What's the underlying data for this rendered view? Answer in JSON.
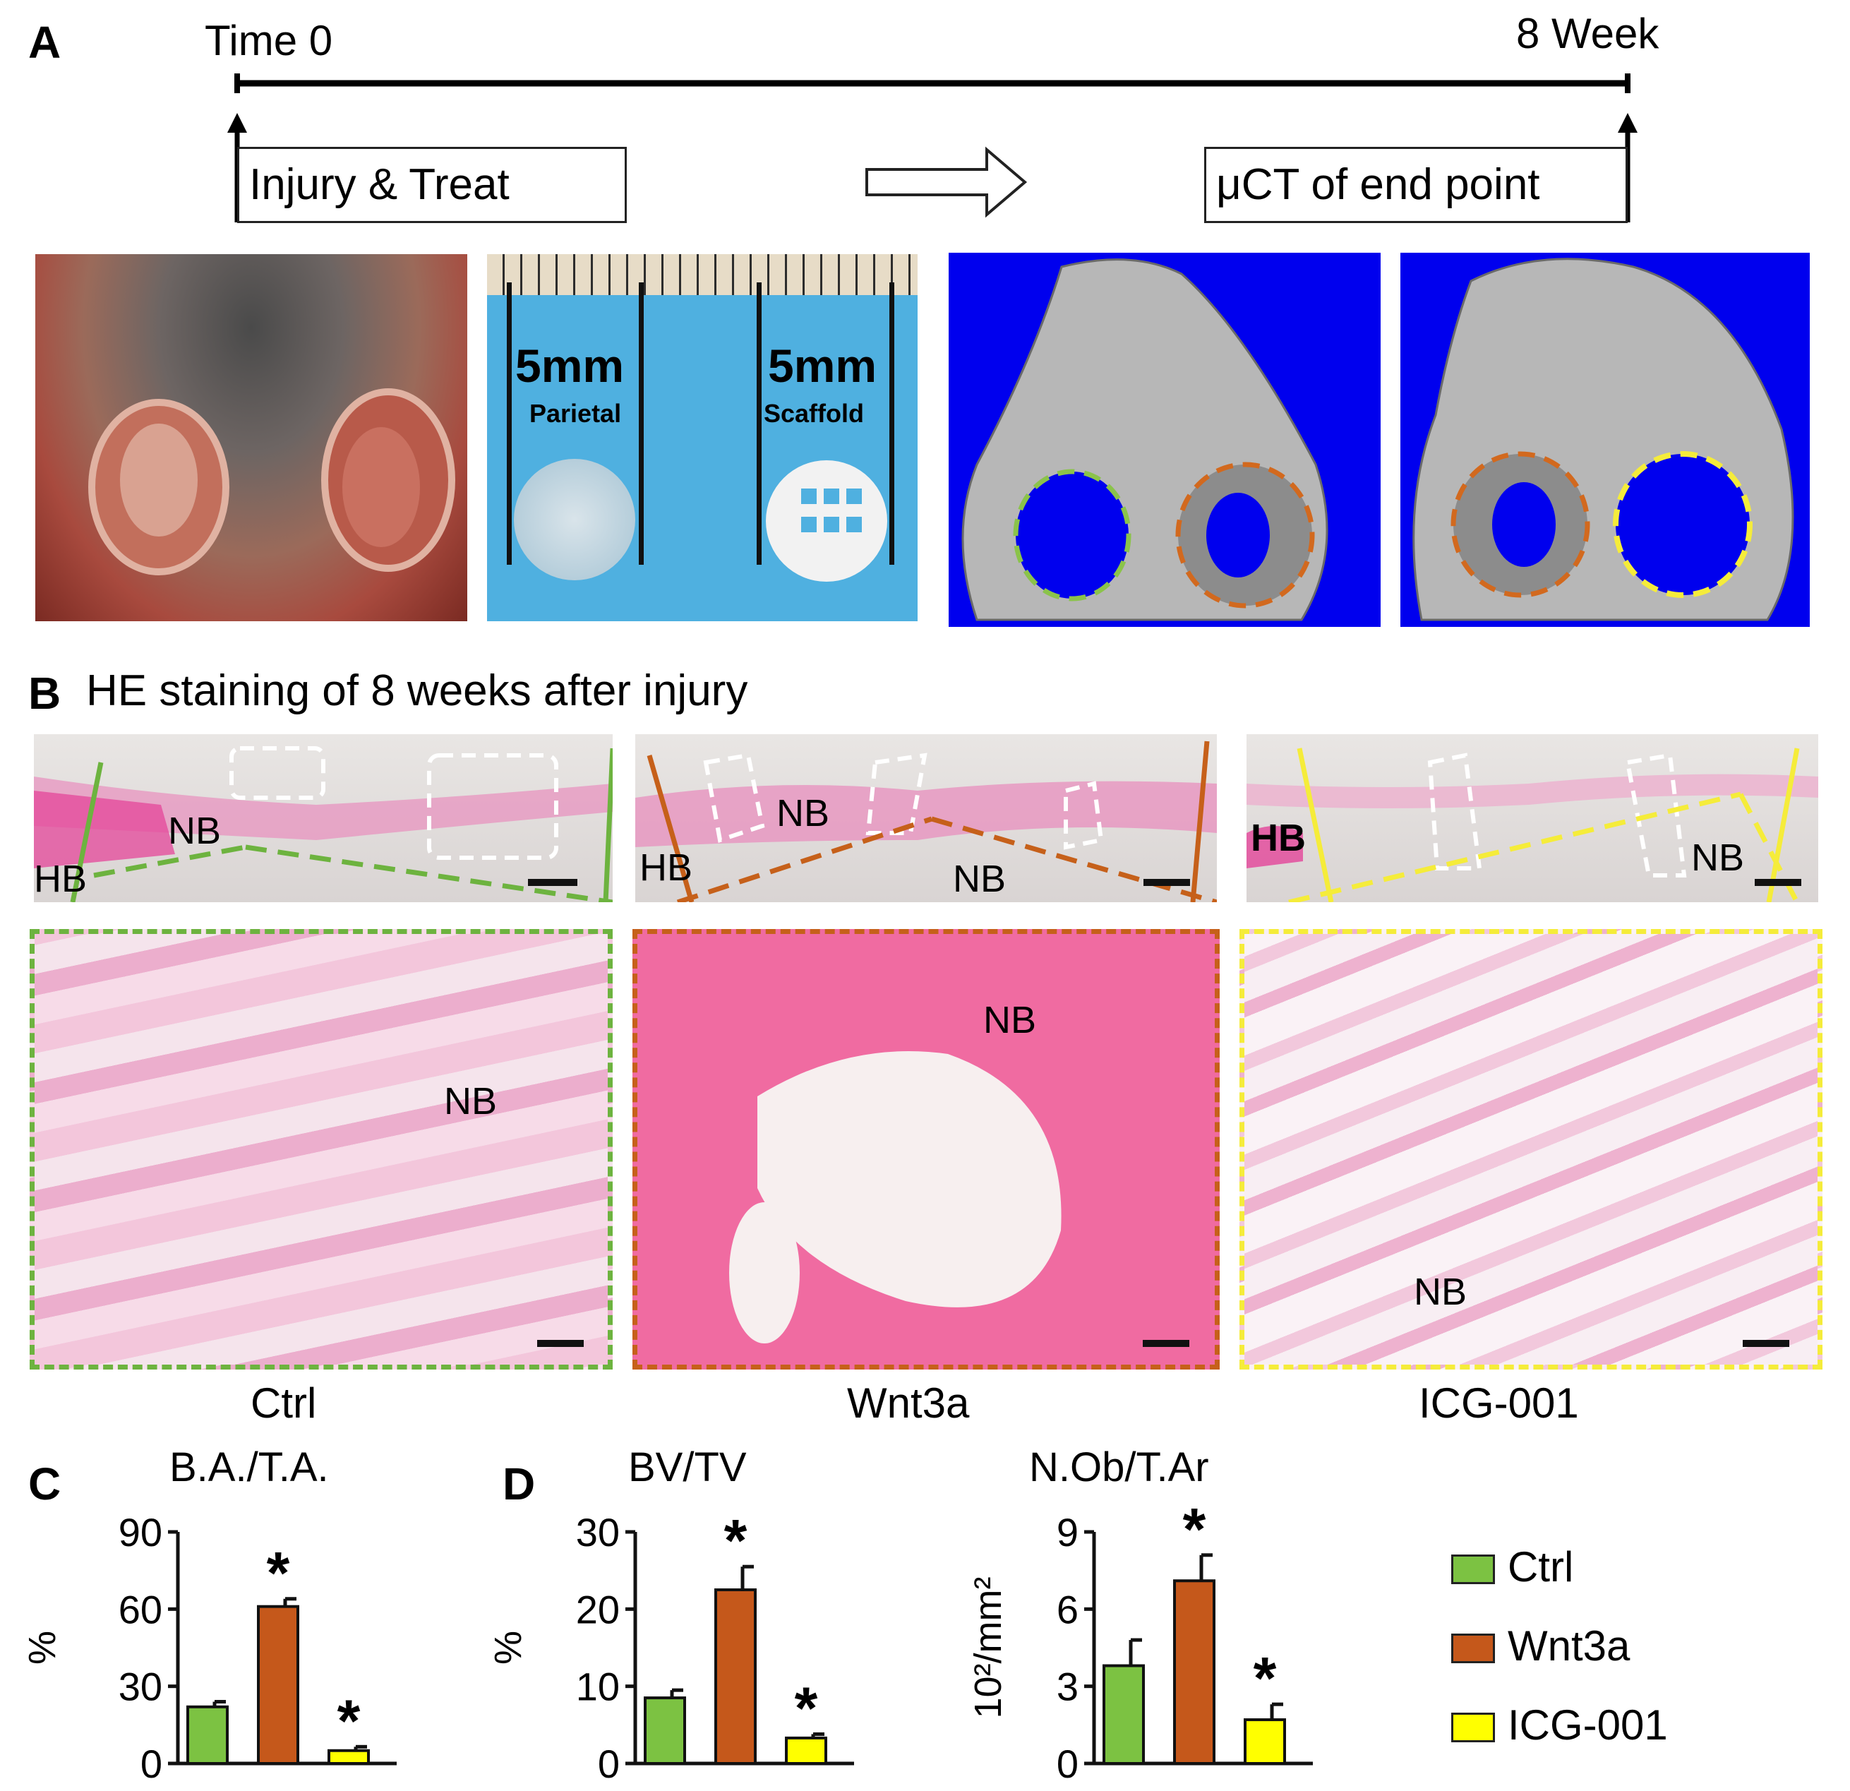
{
  "panelA": {
    "label": "A",
    "timeline": {
      "start": "Time 0",
      "end": "8 Week"
    },
    "box_left": "Injury & Treat",
    "box_right": "μCT of end point",
    "ruler": {
      "left_size": "5mm",
      "left_name": "Parietal",
      "right_size": "5mm",
      "right_name": "Scaffold"
    }
  },
  "panelB": {
    "label": "B",
    "title": "HE staining of 8 weeks after injury",
    "groups": [
      {
        "name": "Ctrl",
        "top_labels": [
          "NB",
          "HB"
        ],
        "bottom_label": "NB",
        "color": "#6db33f"
      },
      {
        "name": "Wnt3a",
        "top_labels": [
          "NB",
          "HB",
          "NB"
        ],
        "bottom_label": "NB",
        "color": "#c6601a"
      },
      {
        "name": "ICG-001",
        "top_labels": [
          "HB",
          "NB"
        ],
        "bottom_label": "NB",
        "color": "#f5ec3a"
      }
    ]
  },
  "panelC": {
    "label": "C"
  },
  "panelD": {
    "label": "D"
  },
  "legend": [
    {
      "name": "Ctrl",
      "color": "#7cc242"
    },
    {
      "name": "Wnt3a",
      "color": "#c5581b"
    },
    {
      "name": "ICG-001",
      "color": "#ffff00"
    }
  ],
  "chart_data": [
    {
      "type": "bar",
      "title": "B.A./T.A.",
      "ylabel": "%",
      "ylim": [
        0,
        90
      ],
      "yticks": [
        "0",
        "30",
        "60",
        "90"
      ],
      "categories": [
        "Ctrl",
        "Wnt3a",
        "ICG-001"
      ],
      "values": [
        22,
        61,
        5
      ],
      "errors": [
        2,
        3,
        1.5
      ],
      "significance": [
        "",
        "*",
        "*"
      ]
    },
    {
      "type": "bar",
      "title": "BV/TV",
      "ylabel": "%",
      "ylim": [
        0,
        30
      ],
      "yticks": [
        "0",
        "10",
        "20",
        "30"
      ],
      "categories": [
        "Ctrl",
        "Wnt3a",
        "ICG-001"
      ],
      "values": [
        8.5,
        22.5,
        3.3
      ],
      "errors": [
        1,
        3,
        0.5
      ],
      "significance": [
        "",
        "*",
        "*"
      ]
    },
    {
      "type": "bar",
      "title": "N.Ob/T.Ar",
      "ylabel": "10²/mm²",
      "ylim": [
        0,
        9
      ],
      "yticks": [
        "0",
        "3",
        "6",
        "9"
      ],
      "categories": [
        "Ctrl",
        "Wnt3a",
        "ICG-001"
      ],
      "values": [
        3.8,
        7.1,
        1.7
      ],
      "errors": [
        1,
        1,
        0.6
      ],
      "significance": [
        "",
        "*",
        "*"
      ]
    }
  ]
}
